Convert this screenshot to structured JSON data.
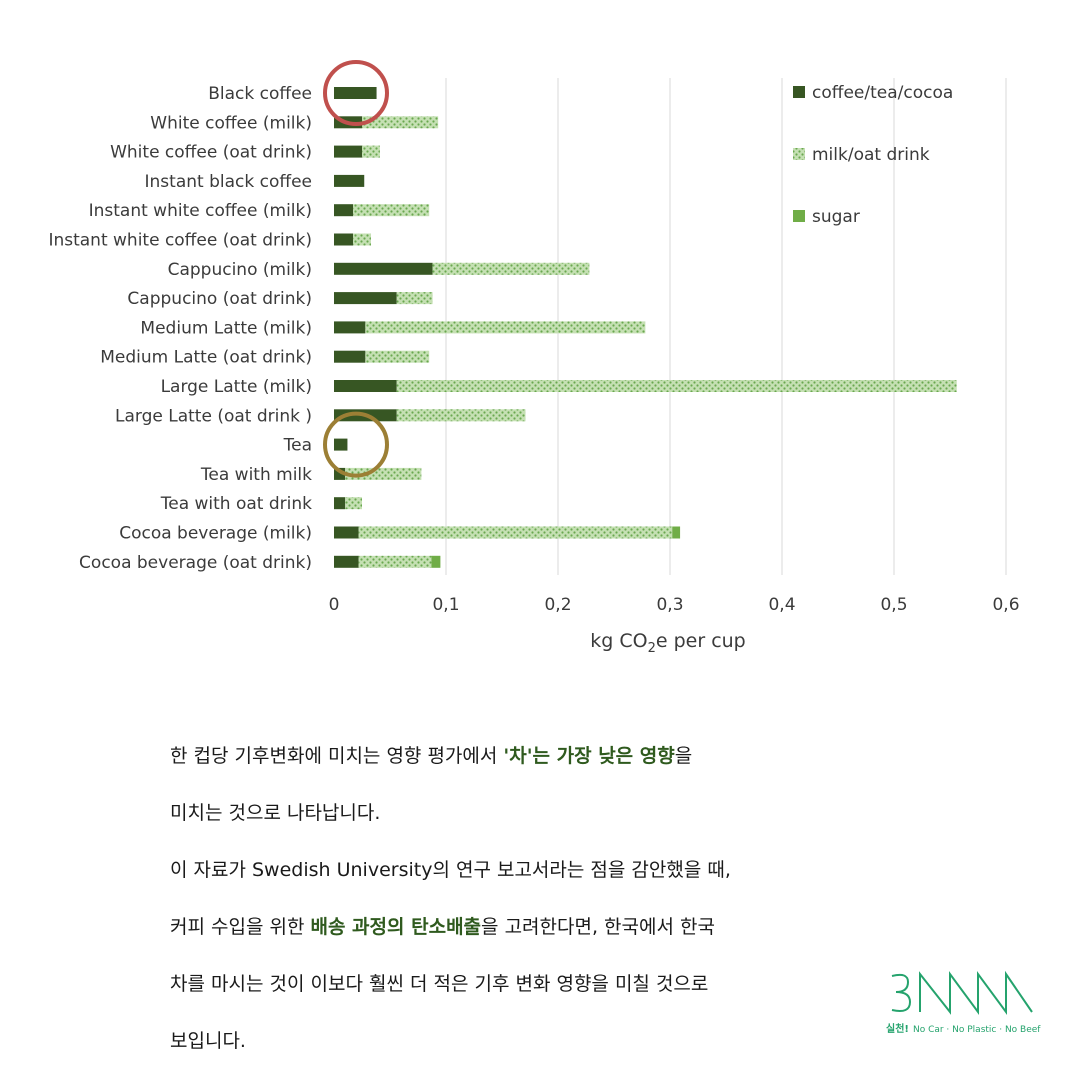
{
  "chart_data": {
    "type": "bar",
    "orientation": "horizontal",
    "stacked": true,
    "categories": [
      "Black coffee",
      "White coffee (milk)",
      "White coffee (oat drink)",
      "Instant black coffee",
      "Instant white coffee (milk)",
      "Instant white coffee (oat drink)",
      "Cappucino (milk)",
      "Cappucino (oat drink)",
      "Medium Latte (milk)",
      "Medium Latte (oat drink)",
      "Large Latte (milk)",
      "Large Latte (oat drink )",
      "Tea",
      "Tea with milk",
      "Tea with oat drink",
      "Cocoa beverage (milk)",
      "Cocoa beverage (oat drink)"
    ],
    "series": [
      {
        "name": "coffee/tea/cocoa",
        "color": "#375623",
        "values": [
          0.038,
          0.025,
          0.025,
          0.027,
          0.017,
          0.017,
          0.088,
          0.056,
          0.028,
          0.028,
          0.056,
          0.056,
          0.012,
          0.01,
          0.01,
          0.022,
          0.022
        ]
      },
      {
        "name": "milk/oat drink",
        "color": "#a9d18e",
        "values": [
          0,
          0.068,
          0.016,
          0,
          0.068,
          0.016,
          0.14,
          0.032,
          0.25,
          0.057,
          0.5,
          0.115,
          0,
          0.068,
          0.015,
          0.28,
          0.065
        ]
      },
      {
        "name": "sugar",
        "color": "#70ad47",
        "values": [
          0,
          0,
          0,
          0,
          0,
          0,
          0,
          0,
          0,
          0,
          0,
          0,
          0,
          0,
          0,
          0.007,
          0.008
        ]
      }
    ],
    "x_ticks": [
      "0",
      "0,1",
      "0,2",
      "0,3",
      "0,4",
      "0,5",
      "0,6"
    ],
    "xlim": [
      0,
      0.6
    ],
    "xlabel_main": "kg CO",
    "xlabel_sub": "2",
    "xlabel_rest": "e per cup",
    "grid": "vertical",
    "legend_position": "top-right",
    "highlight_circles": [
      {
        "category": "Black coffee",
        "color": "#c0504d"
      },
      {
        "category": "Tea",
        "color": "#9c7f35"
      }
    ]
  },
  "caption": {
    "line1_a": "한 컵당 기후변화에 미치는 영향 평가에서 ",
    "line1_hl": "'차'는 가장 낮은 영향",
    "line1_b": "을",
    "line2": "미치는 것으로 나타납니다.",
    "line3": "이 자료가 Swedish University의 연구 보고서라는 점을 감안했을 때,",
    "line4_a": "커피 수입을 위한 ",
    "line4_hl": "배송 과정의 탄소배출",
    "line4_b": "을 고려한다면, 한국에서 한국",
    "line5": "차를 마시는 것이 이보다 훨씬 더 적은 기후 변화 영향을 미칠 것으로",
    "line6": "보입니다."
  },
  "logo": {
    "mark": "3NNN",
    "tag_bold": "실천!",
    "tag_rest": "No Car · No Plastic · No Beef",
    "color": "#25a36d"
  }
}
